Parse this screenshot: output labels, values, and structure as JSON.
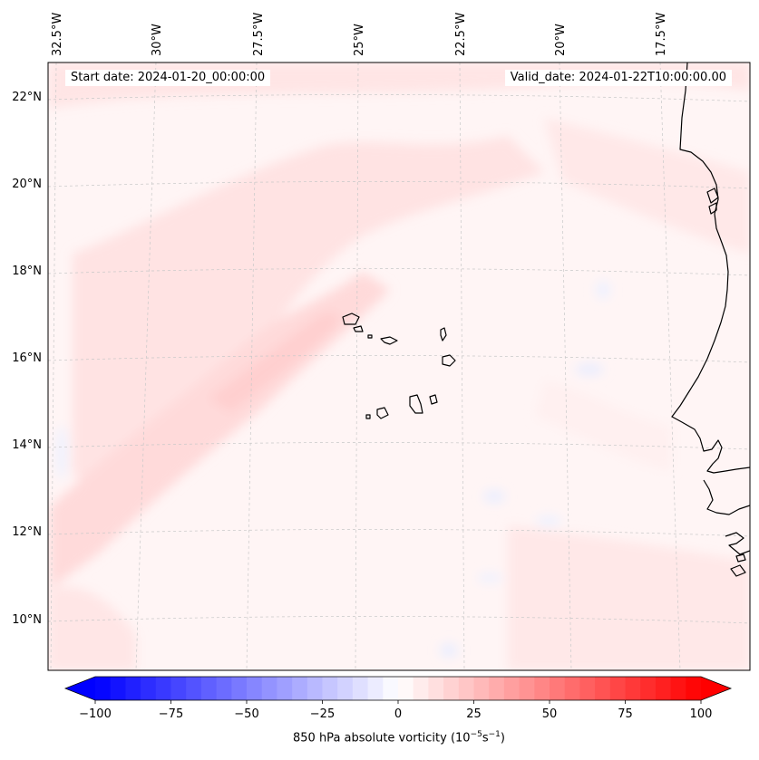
{
  "header": {
    "start_date": "Start date: 2024-01-20_00:00:00",
    "valid_date": "Valid_date: 2024-01-22T10:00:00.00"
  },
  "map": {
    "longitude_labels": [
      "32.5°W",
      "30°W",
      "27.5°W",
      "25°W",
      "22.5°W",
      "20°W",
      "17.5°W"
    ],
    "latitude_labels": [
      "22°N",
      "20°N",
      "18°N",
      "16°N",
      "14°N",
      "12°N",
      "10°N"
    ],
    "features": [
      "Cape Verde islands",
      "West African coastline"
    ]
  },
  "colorbar": {
    "title_main": "850 hPa absolute vorticity (10",
    "title_exp1": "−5",
    "title_mid": "s",
    "title_exp2": "−1",
    "title_end": ")",
    "tick_labels": [
      "−100",
      "−75",
      "−50",
      "−25",
      "0",
      "25",
      "50",
      "75",
      "100"
    ],
    "min": -100,
    "max": 100,
    "colormap": "bwr",
    "low_color": "#0000ff",
    "mid_color": "#ffffff",
    "high_color": "#ff0000"
  }
}
